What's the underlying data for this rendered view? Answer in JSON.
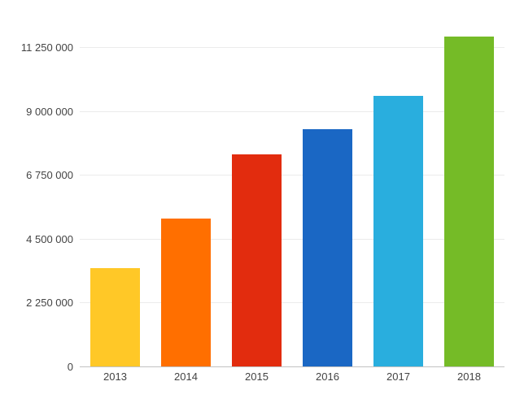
{
  "chart_data": {
    "type": "bar",
    "title": "",
    "xlabel": "",
    "ylabel": "",
    "categories": [
      "2013",
      "2014",
      "2015",
      "2016",
      "2017",
      "2018"
    ],
    "values": [
      3500000,
      5250000,
      7500000,
      8400000,
      9550000,
      11650000
    ],
    "bar_colors": [
      "#ffc827",
      "#ff6f00",
      "#e22c0e",
      "#1a67c4",
      "#29aede",
      "#75bb27"
    ],
    "y_ticks": [
      {
        "value": 0,
        "label": "0"
      },
      {
        "value": 2250000,
        "label": "2 250 000"
      },
      {
        "value": 4500000,
        "label": "4 500 000"
      },
      {
        "value": 6750000,
        "label": "6 750 000"
      },
      {
        "value": 9000000,
        "label": "9 000 000"
      },
      {
        "value": 11250000,
        "label": "11 250 000"
      }
    ],
    "ylim": [
      0,
      12375000
    ],
    "grid": true,
    "legend": "none",
    "background_color": "#ffffff",
    "gridline_color": "#ebebeb",
    "baseline_color": "#c2c2c2",
    "label_color": "#434343"
  }
}
